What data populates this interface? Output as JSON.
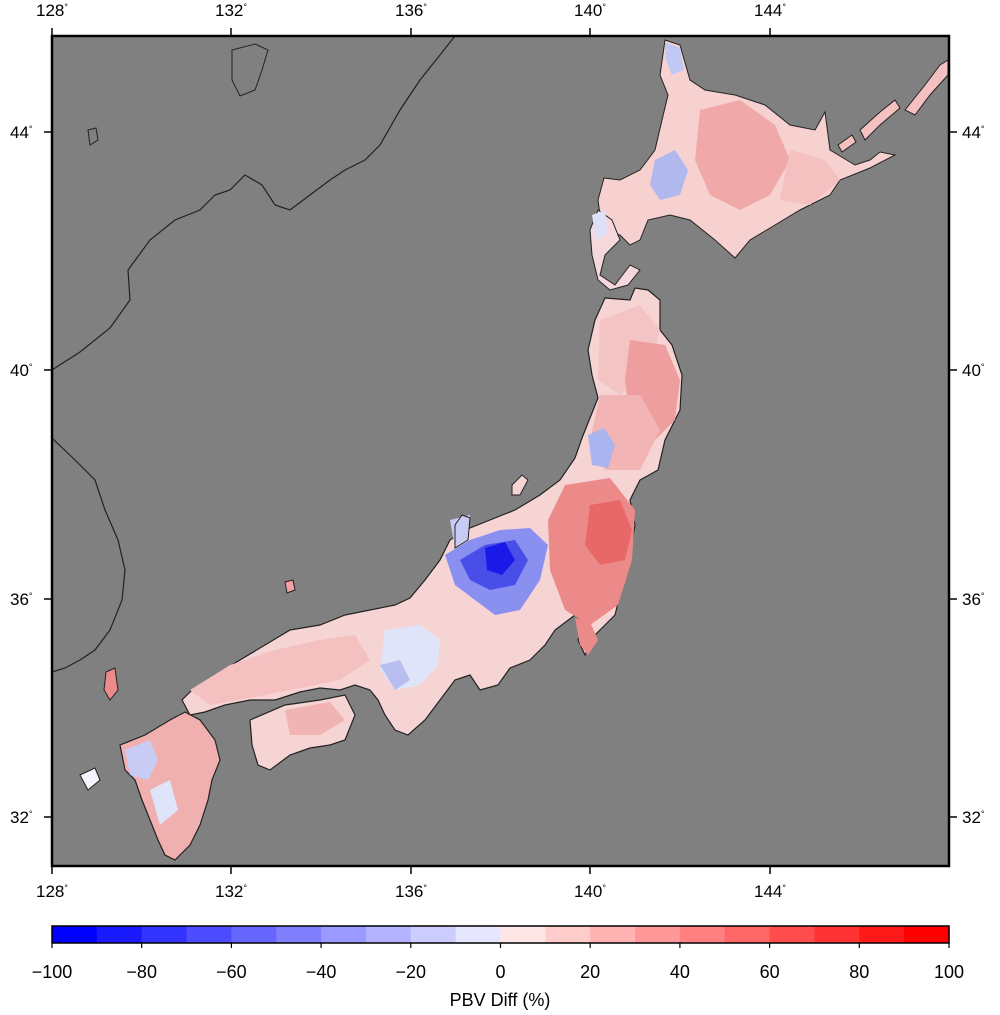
{
  "map": {
    "background_color": "#808080",
    "lon_ticks": [
      "128",
      "132",
      "136",
      "140",
      "144"
    ],
    "lat_ticks": [
      "44",
      "40",
      "36",
      "32"
    ],
    "degree_symbol": "°",
    "land_regions": [
      {
        "id": "hokkaido-west",
        "color": "#f7d0d0"
      },
      {
        "id": "hokkaido-center",
        "color": "#f0a8a8"
      },
      {
        "id": "hokkaido-east",
        "color": "#f4c0c0"
      },
      {
        "id": "hokkaido-cape-blue",
        "color": "#c0c8f4"
      },
      {
        "id": "hokkaido-lake-blue",
        "color": "#b0b8ee"
      },
      {
        "id": "tohoku-north",
        "color": "#f4c4c4"
      },
      {
        "id": "tohoku-east",
        "color": "#ee9e9e"
      },
      {
        "id": "tohoku-blue",
        "color": "#aab4ee"
      },
      {
        "id": "kanto",
        "color": "#ec8a8a"
      },
      {
        "id": "kanto-core",
        "color": "#e86868"
      },
      {
        "id": "chubu-blue",
        "color": "#4a4ee8"
      },
      {
        "id": "chubu-core",
        "color": "#1a1ae8"
      },
      {
        "id": "chubu-south",
        "color": "#f6d4d4"
      },
      {
        "id": "kinki",
        "color": "#eef0fa"
      },
      {
        "id": "chugoku",
        "color": "#f4c0c0"
      },
      {
        "id": "shikoku",
        "color": "#f6d4d4"
      },
      {
        "id": "kyushu",
        "color": "#f0b0b0"
      },
      {
        "id": "kyushu-blue",
        "color": "#c8ccf4"
      }
    ]
  },
  "colorbar": {
    "title": "PBV Diff (%)",
    "tick_labels": [
      "−100",
      "−80",
      "−60",
      "−40",
      "−20",
      "0",
      "20",
      "40",
      "60",
      "80",
      "100"
    ],
    "min": -100,
    "max": 100,
    "bins": [
      "#0000ff",
      "#1a1aff",
      "#3333ff",
      "#4d4dff",
      "#6666ff",
      "#8080ff",
      "#9999ff",
      "#b3b3ff",
      "#ccccff",
      "#e6e6ff",
      "#ffe6e6",
      "#ffcccc",
      "#ffb3b3",
      "#ff9999",
      "#ff8080",
      "#ff6666",
      "#ff4d4d",
      "#ff3333",
      "#ff1a1a",
      "#ff0000"
    ]
  }
}
